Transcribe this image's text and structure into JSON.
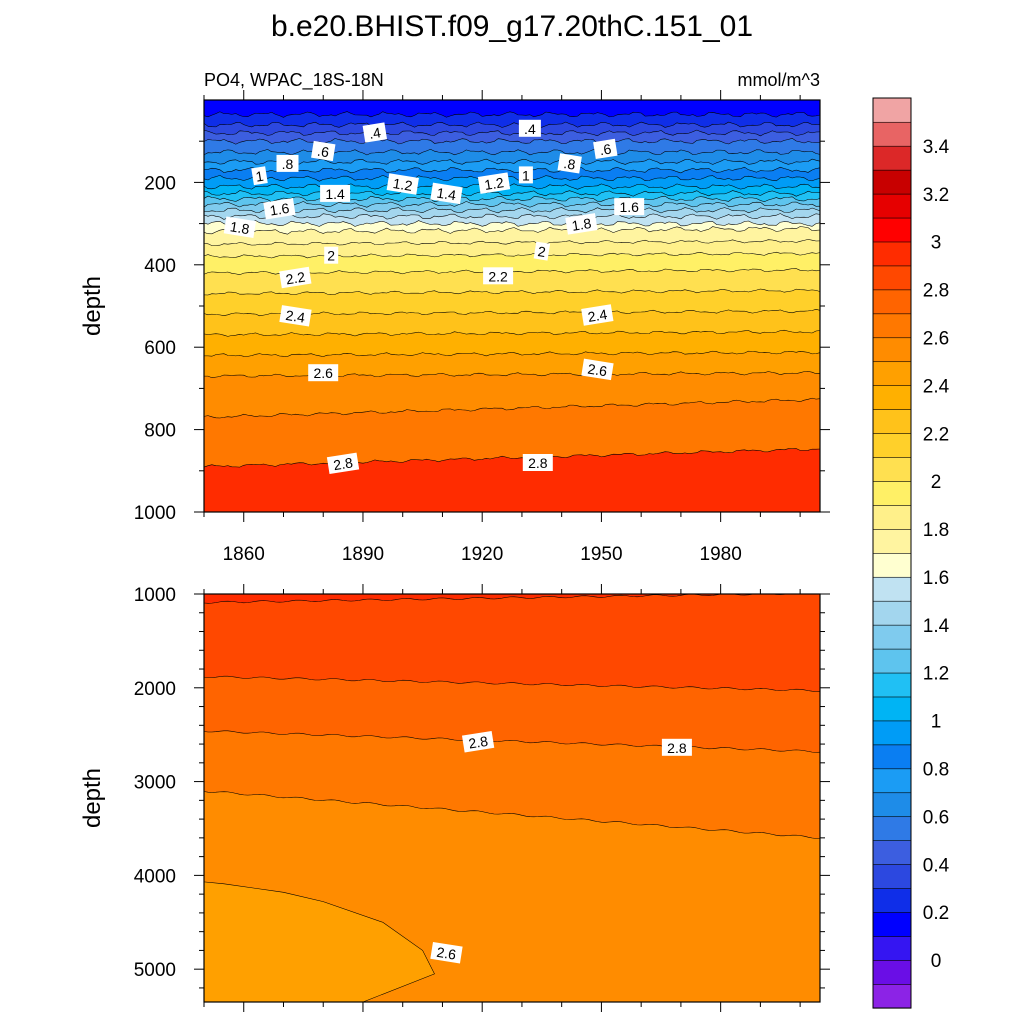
{
  "title": "b.e20.BHIST.f09_g17.20thC.151_01",
  "subtitle_left": "PO4, WPAC_18S-18N",
  "subtitle_right": "mmol/m^3",
  "chart_data": [
    {
      "type": "heatmap",
      "panel": "upper",
      "variable": "PO4",
      "region": "WPAC_18S-18N",
      "units": "mmol/m^3",
      "xlabel": "",
      "ylabel": "depth",
      "xlim": [
        1850,
        2005
      ],
      "ylim": [
        1000,
        0
      ],
      "x_ticks": [
        1860,
        1890,
        1920,
        1950,
        1980
      ],
      "y_ticks": [
        200,
        400,
        600,
        800,
        1000
      ],
      "levels": [
        0,
        0.1,
        0.2,
        0.3,
        0.4,
        0.5,
        0.6,
        0.7,
        0.8,
        0.9,
        1.0,
        1.1,
        1.2,
        1.3,
        1.4,
        1.5,
        1.6,
        1.7,
        1.8,
        1.9,
        2.0,
        2.1,
        2.2,
        2.3,
        2.4,
        2.5,
        2.6,
        2.7,
        2.8,
        2.9,
        3.0,
        3.1,
        3.2,
        3.3,
        3.4,
        3.5
      ],
      "profile": {
        "depth": [
          0,
          35,
          60,
          100,
          140,
          180,
          220,
          260,
          290,
          320,
          350,
          380,
          420,
          470,
          520,
          570,
          620,
          670,
          720,
          770,
          820,
          890,
          960,
          1000
        ],
        "value": [
          0.2,
          0.3,
          0.4,
          0.6,
          0.75,
          0.95,
          1.15,
          1.45,
          1.65,
          1.8,
          1.9,
          2.0,
          2.1,
          2.2,
          2.3,
          2.4,
          2.5,
          2.6,
          2.65,
          2.7,
          2.75,
          2.8,
          2.85,
          2.9
        ]
      },
      "contour_labels": [
        {
          "text": ".4",
          "x": 1893,
          "y": 80
        },
        {
          "text": ".4",
          "x": 1932,
          "y": 70
        },
        {
          "text": ".6",
          "x": 1880,
          "y": 125
        },
        {
          "text": ".6",
          "x": 1951,
          "y": 120
        },
        {
          "text": ".8",
          "x": 1871,
          "y": 155
        },
        {
          "text": ".8",
          "x": 1942,
          "y": 155
        },
        {
          "text": "1",
          "x": 1864,
          "y": 185
        },
        {
          "text": "1",
          "x": 1931,
          "y": 183
        },
        {
          "text": "1.2",
          "x": 1900,
          "y": 205
        },
        {
          "text": "1.2",
          "x": 1923,
          "y": 203
        },
        {
          "text": "1.4",
          "x": 1883,
          "y": 228
        },
        {
          "text": "1.4",
          "x": 1911,
          "y": 228
        },
        {
          "text": "1.6",
          "x": 1869,
          "y": 265
        },
        {
          "text": "1.6",
          "x": 1957,
          "y": 260
        },
        {
          "text": "1.8",
          "x": 1859,
          "y": 310
        },
        {
          "text": "1.8",
          "x": 1945,
          "y": 302
        },
        {
          "text": "2",
          "x": 1882,
          "y": 378
        },
        {
          "text": "2",
          "x": 1935,
          "y": 368
        },
        {
          "text": "2.2",
          "x": 1873,
          "y": 432
        },
        {
          "text": "2.2",
          "x": 1924,
          "y": 428
        },
        {
          "text": "2.4",
          "x": 1873,
          "y": 525
        },
        {
          "text": "2.4",
          "x": 1949,
          "y": 523
        },
        {
          "text": "2.6",
          "x": 1880,
          "y": 663
        },
        {
          "text": "2.6",
          "x": 1949,
          "y": 655
        },
        {
          "text": "2.8",
          "x": 1885,
          "y": 883
        },
        {
          "text": "2.8",
          "x": 1934,
          "y": 881
        }
      ]
    },
    {
      "type": "heatmap",
      "panel": "lower",
      "variable": "PO4",
      "xlabel": "",
      "ylabel": "depth",
      "xlim": [
        1850,
        2005
      ],
      "ylim": [
        5350,
        1000
      ],
      "y_ticks": [
        1000,
        2000,
        3000,
        4000,
        5000
      ],
      "contours": [
        {
          "level": 3.0,
          "depth_start": 1090,
          "depth_end": 990
        },
        {
          "level": 2.9,
          "depth_start": 1880,
          "depth_end": 2030
        },
        {
          "level": 2.8,
          "depth_start": 2460,
          "depth_end": 2680
        },
        {
          "level": 2.7,
          "depth_start": 3100,
          "depth_end": 3600
        }
      ],
      "contour_26": {
        "level": 2.6,
        "x": [
          1850,
          1855,
          1870,
          1880,
          1895,
          1905,
          1908,
          1902,
          1890,
          1850
        ],
        "depth": [
          4070,
          4090,
          4180,
          4280,
          4500,
          4800,
          5050,
          5150,
          5350,
          5350
        ]
      },
      "contour_labels": [
        {
          "text": "2.8",
          "x": 1919,
          "y": 2580
        },
        {
          "text": "2.8",
          "x": 1969,
          "y": 2640
        },
        {
          "text": "2.6",
          "x": 1911,
          "y": 4830
        }
      ]
    }
  ],
  "colorbar": {
    "colors": [
      "#8c23e6",
      "#6a0ee6",
      "#3515f2",
      "#0000ff",
      "#0f2ee8",
      "#2c48e0",
      "#3c5ee0",
      "#2f7ae6",
      "#1e8ce8",
      "#1b9cf4",
      "#0a7ef2",
      "#009cf6",
      "#00b4f4",
      "#20c0f4",
      "#5ec4ee",
      "#7fcbee",
      "#a3d6ee",
      "#c0e2f2",
      "#ffffd0",
      "#fff4a0",
      "#fff08a",
      "#fff066",
      "#ffe050",
      "#ffd02a",
      "#ffc21a",
      "#ffb000",
      "#ffa000",
      "#ff8c00",
      "#ff7800",
      "#ff6400",
      "#ff4800",
      "#ff2c00",
      "#ff0000",
      "#e60000",
      "#c80000",
      "#dc2828",
      "#e86464",
      "#f0a4a4"
    ],
    "tick_labels": [
      "0",
      "0.2",
      "0.4",
      "0.6",
      "0.8",
      "1",
      "1.2",
      "1.4",
      "1.6",
      "1.8",
      "2",
      "2.2",
      "2.4",
      "2.6",
      "2.8",
      "3",
      "3.2",
      "3.4"
    ]
  }
}
